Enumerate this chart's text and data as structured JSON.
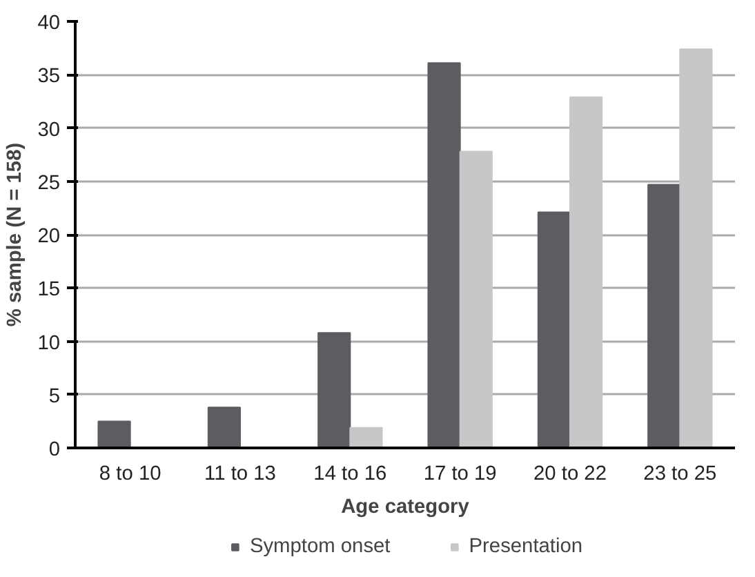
{
  "chart_data": {
    "type": "bar",
    "xlabel": "Age category",
    "ylabel": "% sample (N = 158)",
    "categories": [
      "8 to 10",
      "11 to 13",
      "14 to 16",
      "17 to 19",
      "20 to 22",
      "23 to 25"
    ],
    "series": [
      {
        "name": "Symptom onset",
        "color": "#5c5d61",
        "values": [
          2.5,
          3.8,
          10.8,
          36.1,
          22.1,
          24.7
        ]
      },
      {
        "name": "Presentation",
        "color": "#c6c7c9",
        "values": [
          0,
          0,
          1.9,
          27.8,
          32.9,
          37.4
        ]
      }
    ],
    "ylim": [
      0,
      40
    ],
    "yticks": [
      0,
      5,
      10,
      15,
      20,
      25,
      30,
      35,
      40
    ],
    "grid": "y",
    "legend": "bottom"
  }
}
